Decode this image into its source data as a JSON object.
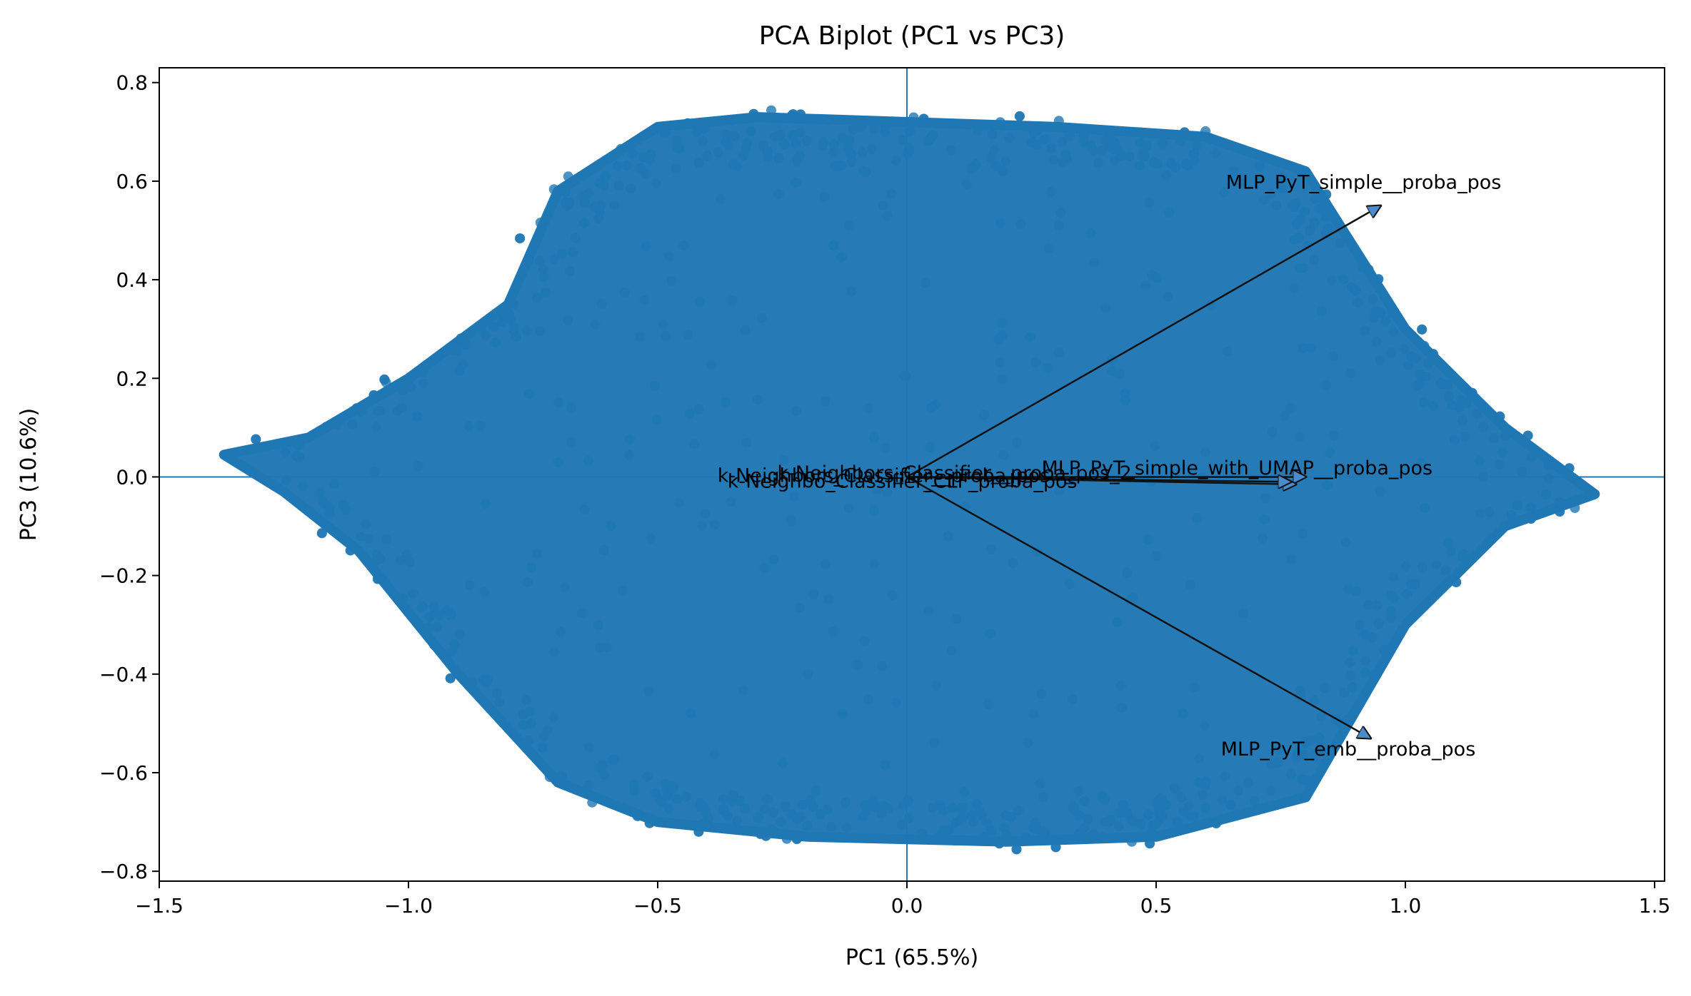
{
  "chart_data": {
    "type": "scatter",
    "title": "PCA Biplot (PC1 vs PC3)",
    "xlabel": "PC1 (65.5%)",
    "ylabel": "PC3 (10.6%)",
    "xlim": [
      -1.5,
      1.52
    ],
    "ylim": [
      -0.82,
      0.83
    ],
    "x_ticks": [
      -1.5,
      -1.0,
      -0.5,
      0.0,
      0.5,
      1.0,
      1.5
    ],
    "x_tick_labels": [
      "−1.5",
      "−1.0",
      "−0.5",
      "0.0",
      "0.5",
      "1.0",
      "1.5"
    ],
    "y_ticks": [
      -0.8,
      -0.6,
      -0.4,
      -0.2,
      0.0,
      0.2,
      0.4,
      0.6,
      0.8
    ],
    "y_tick_labels": [
      "−0.8",
      "−0.6",
      "−0.4",
      "−0.2",
      "0.0",
      "0.2",
      "0.4",
      "0.6",
      "0.8"
    ],
    "grid": false,
    "reference_lines": {
      "x": 0.0,
      "y": 0.0
    },
    "point_color": "#1f77b4",
    "point_cloud_envelope": {
      "description_points": [
        [
          -1.37,
          0.045
        ],
        [
          -1.2,
          0.08
        ],
        [
          -1.0,
          0.2
        ],
        [
          -0.8,
          0.35
        ],
        [
          -0.7,
          0.58
        ],
        [
          -0.5,
          0.71
        ],
        [
          -0.3,
          0.73
        ],
        [
          0.0,
          0.72
        ],
        [
          0.3,
          0.71
        ],
        [
          0.6,
          0.69
        ],
        [
          0.8,
          0.62
        ],
        [
          1.0,
          0.3
        ],
        [
          1.2,
          0.1
        ],
        [
          1.38,
          -0.035
        ],
        [
          1.2,
          -0.1
        ],
        [
          1.0,
          -0.3
        ],
        [
          0.8,
          -0.65
        ],
        [
          0.5,
          -0.73
        ],
        [
          0.2,
          -0.74
        ],
        [
          -0.2,
          -0.73
        ],
        [
          -0.5,
          -0.7
        ],
        [
          -0.7,
          -0.62
        ],
        [
          -0.9,
          -0.4
        ],
        [
          -1.1,
          -0.15
        ],
        [
          -1.25,
          -0.03
        ],
        [
          -1.37,
          0.045
        ]
      ]
    },
    "loading_vectors": [
      {
        "label": "MLP_PyT_simple__proba_pos",
        "x": 0.95,
        "y": 0.55,
        "label_x": 0.64,
        "label_y": 0.585
      },
      {
        "label": "MLP_PyT_emb__proba_pos",
        "x": 0.93,
        "y": -0.53,
        "label_x": 0.63,
        "label_y": -0.565
      },
      {
        "label": "MLP_PyT_simple_with_UMAP__proba_pos",
        "x": 0.8,
        "y": 0.0,
        "label_x": 0.27,
        "label_y": 0.005
      },
      {
        "label": "k-Neighbors_Classifier__proba_pos",
        "x": 0.78,
        "y": -0.015,
        "label_x": -0.38,
        "label_y": -0.01
      },
      {
        "label": "k-Neighbors_Classifier__proba_pos_2",
        "x": 0.77,
        "y": -0.01,
        "label_x": -0.26,
        "label_y": -0.005
      }
    ],
    "overlapping_label_text": "k-Neighbo_Classifier_CLF_proba_pos"
  }
}
